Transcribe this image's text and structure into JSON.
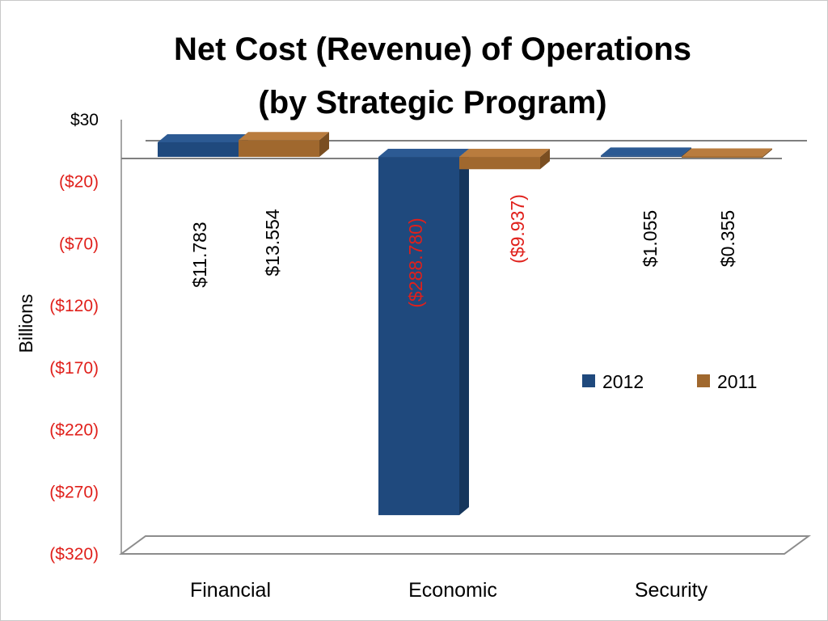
{
  "chart_data": {
    "type": "bar",
    "title_lines": [
      "Net Cost (Revenue) of Operations",
      "(by Strategic Program)"
    ],
    "ylabel": "Billions",
    "ylim": [
      -320,
      30
    ],
    "yticks": [
      30,
      -20,
      -70,
      -120,
      -170,
      -220,
      -270,
      -320
    ],
    "ytick_labels": [
      "$30",
      "($20)",
      "($70)",
      "($120)",
      "($170)",
      "($220)",
      "($270)",
      "($320)"
    ],
    "categories": [
      "Financial",
      "Economic",
      "Security"
    ],
    "series": [
      {
        "name": "2012",
        "values": [
          11.783,
          -288.78,
          1.055
        ],
        "labels": [
          "$11.783",
          "($288.780)",
          "$1.055"
        ]
      },
      {
        "name": "2011",
        "values": [
          13.554,
          -9.937,
          0.355
        ],
        "labels": [
          "$13.554",
          "($9.937)",
          "$0.355"
        ]
      }
    ],
    "legend_position": "right",
    "colors": {
      "series_2012": "#1F497D",
      "series_2012_side": "#16365C",
      "series_2012_top": "#2C5A93",
      "series_2011": "#A0682E",
      "series_2011_side": "#7A4E21",
      "series_2011_top": "#B97C3E",
      "negative_text": "#E0201B",
      "positive_text": "#000000"
    }
  }
}
